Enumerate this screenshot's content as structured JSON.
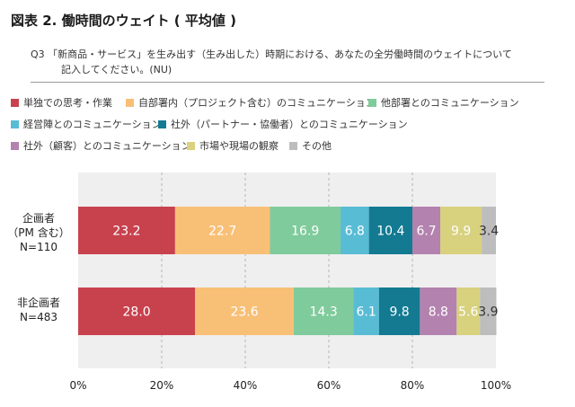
{
  "title": "図表 2. 働時間のウェイト ( 平均値 )",
  "question": {
    "line1": "Q3 「新商品・サービス」を生み出す（生み出した）時期における、あなたの全労働時間のウェイトについて",
    "line2": "記入してください。(NU)"
  },
  "chart_data": {
    "type": "bar",
    "orientation": "horizontal",
    "stacked": "percent",
    "xlim": [
      0,
      100
    ],
    "ticks": [
      "0%",
      "20%",
      "40%",
      "60%",
      "80%",
      "100%"
    ],
    "grid": true,
    "legend_position": "top",
    "categories": [
      {
        "label_line1": "企画者",
        "label_line2": "（PM 含む）",
        "label_line3": "N=110"
      },
      {
        "label_line1": "非企画者",
        "label_line2": "N=483"
      }
    ],
    "series": [
      {
        "name": "単独での思考・作業",
        "color": "#c8424e",
        "values": [
          23.2,
          28.0
        ]
      },
      {
        "name": "自部署内（プロジェクト含む）のコミュニケーション",
        "color": "#f8c077",
        "values": [
          22.7,
          23.6
        ]
      },
      {
        "name": "他部署とのコミュニケーション",
        "color": "#7fcb9c",
        "values": [
          16.9,
          14.3
        ]
      },
      {
        "name": "経営陣とのコミュニケーション",
        "color": "#58bcd5",
        "values": [
          6.8,
          6.1
        ]
      },
      {
        "name": "社外（パートナー・協働者）とのコミュニケーション",
        "color": "#137a92",
        "values": [
          10.4,
          9.8
        ]
      },
      {
        "name": "社外（顧客）とのコミュニケーション",
        "color": "#b482af",
        "values": [
          6.7,
          8.8
        ]
      },
      {
        "name": "市場や現場の観察",
        "color": "#d8d17e",
        "values": [
          9.9,
          5.6
        ]
      },
      {
        "name": "その他",
        "color": "#bdbdbd",
        "values": [
          3.4,
          3.9
        ]
      }
    ]
  }
}
